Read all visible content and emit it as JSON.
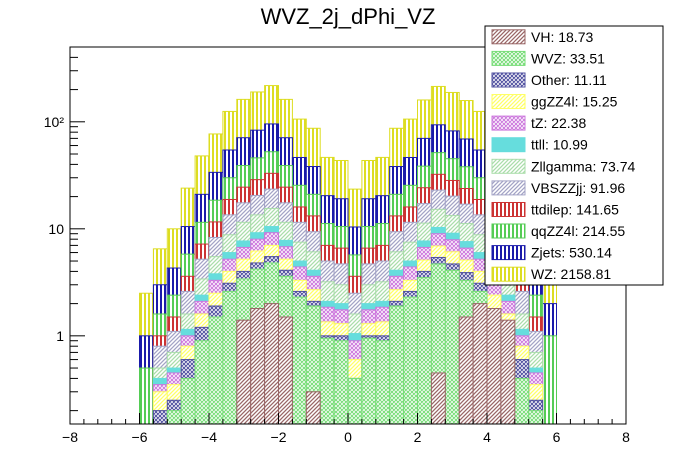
{
  "chart_data": {
    "type": "histogram-stacked",
    "title": "WVZ_2j_dPhi_VZ",
    "xlabel": "",
    "ylabel": "",
    "xlim": [
      -8,
      8
    ],
    "ylim": [
      0.15,
      500
    ],
    "yscale": "log",
    "grid": false,
    "x_ticks": [
      -8,
      -6,
      -4,
      -2,
      0,
      2,
      4,
      6,
      8
    ],
    "x_tick_labels": [
      "−8",
      "−6",
      "−4",
      "−2",
      "0",
      "2",
      "4",
      "6",
      "8"
    ],
    "y_ticks": [
      1,
      10,
      100
    ],
    "y_tick_labels": [
      "1",
      "10",
      "10²"
    ],
    "legend_position": "top-right",
    "bin_edges_range": [
      -6.4,
      6.4
    ],
    "n_bins": 32,
    "series": [
      {
        "name": "VH",
        "legend": "VH: 18.73",
        "color": "#996666",
        "pattern": "hatch-diag",
        "cumulative": [
          0.0,
          0.0,
          0.0,
          0.0,
          0.0,
          0.0,
          0.0,
          0.0,
          1.4,
          1.8,
          2.0,
          1.5,
          0.0,
          0.3,
          0.0,
          0.0,
          0.0,
          0.0,
          0.0,
          0.0,
          0.0,
          0.0,
          0.45,
          0.0,
          1.5,
          2.0,
          1.8,
          1.4,
          0.0,
          0.0,
          0.0,
          0.0
        ]
      },
      {
        "name": "WVZ",
        "legend": "WVZ: 33.51",
        "color": "#77dd77",
        "pattern": "hatch-cross",
        "cumulative": [
          0.0,
          0.0,
          0.0,
          0.2,
          0.4,
          0.9,
          1.5,
          2.6,
          3.4,
          4.2,
          4.8,
          3.6,
          2.3,
          1.9,
          0.95,
          0.9,
          0.4,
          0.95,
          0.9,
          1.9,
          2.3,
          3.5,
          4.7,
          4.1,
          3.3,
          2.6,
          1.4,
          0.9,
          0.4,
          0.2,
          0.0,
          0.0
        ]
      },
      {
        "name": "Other",
        "legend": "Other: 11.11",
        "color": "#4f4f9f",
        "pattern": "hatch-cross",
        "cumulative": [
          0.0,
          0.0,
          0.2,
          0.25,
          0.6,
          1.2,
          1.9,
          3.1,
          4.0,
          4.8,
          5.5,
          4.1,
          2.6,
          2.1,
          1.0,
          1.0,
          0.4,
          1.0,
          1.0,
          2.1,
          2.6,
          4.0,
          5.4,
          4.7,
          3.9,
          3.1,
          1.8,
          1.2,
          0.6,
          0.25,
          0.0,
          0.0
        ]
      },
      {
        "name": "ggZZ4l",
        "legend": "ggZZ4l: 15.25",
        "color": "#ffff66",
        "pattern": "hatch-diag",
        "cumulative": [
          0.0,
          0.0,
          0.3,
          0.35,
          0.8,
          1.6,
          2.5,
          4.0,
          5.2,
          6.2,
          7.0,
          5.2,
          3.3,
          2.7,
          1.35,
          1.3,
          0.6,
          1.3,
          1.35,
          2.7,
          3.3,
          5.1,
          6.9,
          6.1,
          5.1,
          4.0,
          2.4,
          1.6,
          0.8,
          0.35,
          0.0,
          0.0
        ]
      },
      {
        "name": "tZ",
        "legend": "tZ: 22.38",
        "color": "#cc77dd",
        "pattern": "hatch-cross",
        "cumulative": [
          0.0,
          0.0,
          0.35,
          0.45,
          1.0,
          2.1,
          3.3,
          5.2,
          6.7,
          8.0,
          9.2,
          6.8,
          4.4,
          3.6,
          1.85,
          1.75,
          0.9,
          1.75,
          1.85,
          3.6,
          4.4,
          6.7,
          9.0,
          7.9,
          6.6,
          5.2,
          3.2,
          2.1,
          1.0,
          0.45,
          0.0,
          0.0
        ]
      },
      {
        "name": "ttll",
        "legend": "ttll: 10.99",
        "color": "#66dddd",
        "pattern": "solid",
        "cumulative": [
          0.0,
          0.0,
          0.4,
          0.5,
          1.15,
          2.4,
          3.8,
          6.0,
          7.7,
          9.2,
          10.5,
          7.8,
          5.0,
          4.1,
          2.1,
          2.0,
          1.05,
          2.0,
          2.1,
          4.1,
          5.0,
          7.7,
          10.3,
          9.1,
          7.6,
          6.0,
          3.7,
          2.4,
          1.15,
          0.5,
          0.0,
          0.0
        ]
      },
      {
        "name": "Zllgamma",
        "legend": "Zllgamma: 73.74",
        "color": "#aaddaa",
        "pattern": "hatch-diag",
        "cumulative": [
          0.0,
          0.0,
          0.5,
          0.7,
          1.6,
          3.4,
          5.5,
          8.8,
          11.5,
          13.5,
          15.5,
          11.5,
          7.5,
          6.1,
          3.2,
          3.0,
          1.6,
          3.0,
          3.2,
          6.1,
          7.5,
          11.3,
          15.2,
          13.3,
          11.2,
          8.8,
          5.4,
          3.4,
          1.6,
          0.7,
          0.0,
          0.0
        ]
      },
      {
        "name": "VBSZZjj",
        "legend": "VBSZZjj: 91.96",
        "color": "#a3a3c6",
        "pattern": "hatch-diag",
        "cumulative": [
          0.0,
          0.0,
          0.8,
          1.1,
          2.6,
          5.2,
          8.3,
          13.5,
          17.5,
          20.5,
          23.5,
          17.5,
          11.5,
          9.4,
          5.0,
          4.7,
          2.5,
          4.7,
          5.0,
          9.4,
          11.5,
          17.2,
          23.0,
          20.2,
          17.0,
          13.5,
          8.1,
          5.2,
          2.6,
          1.1,
          0.0,
          0.0
        ]
      },
      {
        "name": "ttdilep",
        "legend": "ttdilep: 141.65",
        "color": "#cc3333",
        "pattern": "vlines",
        "cumulative": [
          0.0,
          0.0,
          1.0,
          1.5,
          3.6,
          7.2,
          11.6,
          18.8,
          24.5,
          28.8,
          33.0,
          24.5,
          16.0,
          13.2,
          7.0,
          6.6,
          3.6,
          6.6,
          7.0,
          13.2,
          16.0,
          24.2,
          32.3,
          28.3,
          23.8,
          18.8,
          11.3,
          7.2,
          3.6,
          1.5,
          0.0,
          0.0
        ]
      },
      {
        "name": "qqZZ4l",
        "legend": "qqZZ4l: 214.55",
        "color": "#55cc55",
        "pattern": "vlines",
        "cumulative": [
          0.0,
          0.5,
          1.6,
          2.4,
          5.8,
          11.5,
          18.5,
          30.0,
          39.0,
          46.0,
          52.5,
          39.0,
          25.5,
          21.0,
          11.2,
          10.5,
          5.7,
          10.5,
          11.2,
          21.0,
          25.5,
          38.5,
          51.5,
          45.2,
          38.0,
          30.0,
          18.0,
          11.5,
          5.8,
          2.4,
          1.0,
          0.0
        ]
      },
      {
        "name": "Zjets",
        "legend": "Zjets: 530.14",
        "color": "#1a1aaa",
        "pattern": "vlines",
        "cumulative": [
          0.0,
          1.0,
          3.0,
          4.3,
          10.5,
          21.0,
          33.7,
          54.5,
          71.0,
          83.5,
          95.5,
          71.0,
          46.4,
          38.2,
          20.4,
          19.1,
          10.4,
          19.1,
          20.4,
          38.2,
          46.4,
          70.0,
          93.7,
          82.2,
          69.1,
          54.5,
          32.8,
          21.0,
          10.5,
          4.3,
          2.0,
          0.0
        ]
      },
      {
        "name": "WZ",
        "legend": "WZ: 2158.81",
        "color": "#dddd22",
        "pattern": "vlines",
        "cumulative": [
          0.0,
          2.5,
          6.5,
          10.0,
          24.0,
          48.0,
          77.0,
          125.0,
          162.0,
          190.0,
          218.0,
          162.0,
          106.0,
          87.0,
          46.5,
          43.5,
          23.5,
          43.5,
          46.5,
          87.0,
          106.0,
          160.0,
          214.0,
          188.0,
          158.0,
          125.0,
          75.0,
          48.0,
          24.0,
          10.0,
          4.5,
          0.0
        ]
      }
    ]
  }
}
